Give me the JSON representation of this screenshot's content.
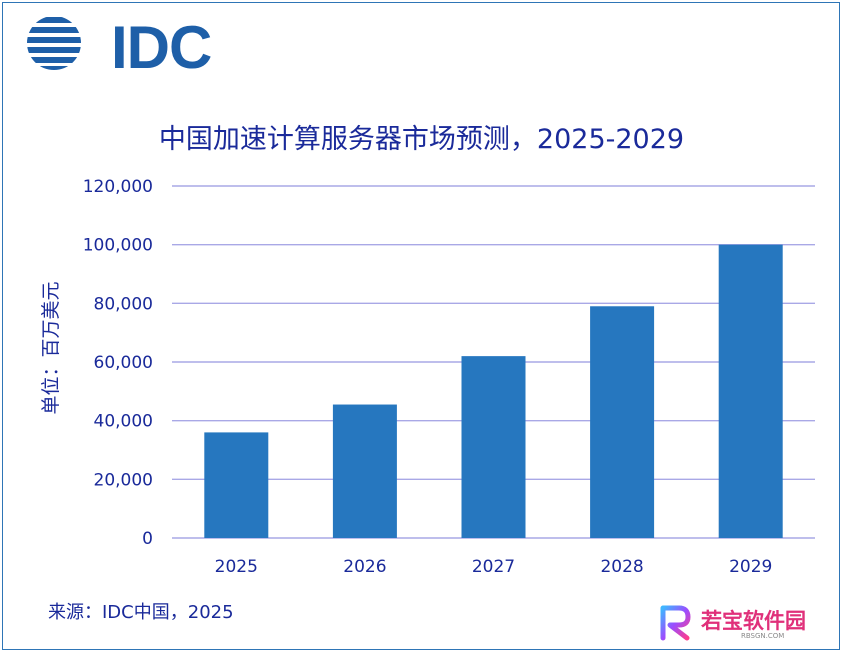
{
  "logo": {
    "text": "IDC"
  },
  "chart_data": {
    "type": "bar",
    "title": "中国加速计算服务器市场预测，2025-2029",
    "ylabel": "单位：百万美元",
    "xlabel": "",
    "categories": [
      "2025",
      "2026",
      "2027",
      "2028",
      "2029"
    ],
    "values": [
      36000,
      45500,
      62000,
      79000,
      100000
    ],
    "ylim": [
      0,
      120000
    ],
    "yticks": [
      0,
      20000,
      40000,
      60000,
      80000,
      100000,
      120000
    ],
    "ytick_labels": [
      "0",
      "20,000",
      "40,000",
      "60,000",
      "80,000",
      "100,000",
      "120,000"
    ],
    "grid": true,
    "bar_color": "#2677bf",
    "grid_color": "#a9a8e6"
  },
  "source": "来源：IDC中国，2025",
  "watermark": {
    "text": "若宝软件园",
    "sub": "RBSGN.COM"
  }
}
